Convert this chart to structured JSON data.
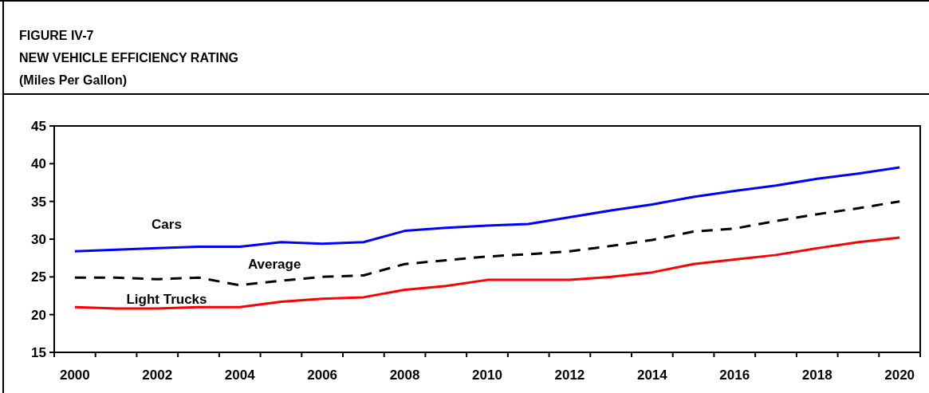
{
  "chart_data": {
    "type": "line",
    "title": "FIGURE IV-7",
    "subtitle": "NEW VEHICLE EFFICIENCY RATING",
    "ylabel": "(Miles Per Gallon)",
    "categories": [
      "2000",
      null,
      "2002",
      null,
      "2004",
      null,
      "2006",
      null,
      "2008",
      null,
      "2010",
      null,
      "2012",
      null,
      "2014",
      null,
      "2016",
      null,
      "2018",
      null,
      "2020"
    ],
    "ylim": [
      15,
      45
    ],
    "yticks": [
      15,
      20,
      25,
      30,
      35,
      40,
      45
    ],
    "grid": false,
    "legend": false,
    "marker": "none",
    "series": [
      {
        "name": "Cars",
        "color": "#0000ff",
        "line_style": "solid",
        "values": [
          28.4,
          28.6,
          28.8,
          29.0,
          29.0,
          29.6,
          29.4,
          29.6,
          31.1,
          31.5,
          31.8,
          32.0,
          32.9,
          33.8,
          34.6,
          35.6,
          36.4,
          37.1,
          38.0,
          38.7,
          39.5
        ]
      },
      {
        "name": "Average",
        "color": "#000000",
        "line_style": "dashed",
        "values": [
          24.9,
          24.9,
          24.7,
          24.9,
          23.9,
          24.5,
          25.0,
          25.2,
          26.7,
          27.2,
          27.7,
          28.0,
          28.4,
          29.1,
          29.9,
          31.0,
          31.4,
          32.4,
          33.3,
          34.1,
          35.0
        ]
      },
      {
        "name": "Light Trucks",
        "color": "#ff0000",
        "line_style": "solid",
        "values": [
          21.0,
          20.8,
          20.8,
          21.0,
          21.0,
          21.7,
          22.1,
          22.3,
          23.3,
          23.8,
          24.6,
          24.6,
          24.6,
          25.0,
          25.6,
          26.7,
          27.3,
          27.9,
          28.8,
          29.6,
          30.2
        ]
      }
    ]
  }
}
